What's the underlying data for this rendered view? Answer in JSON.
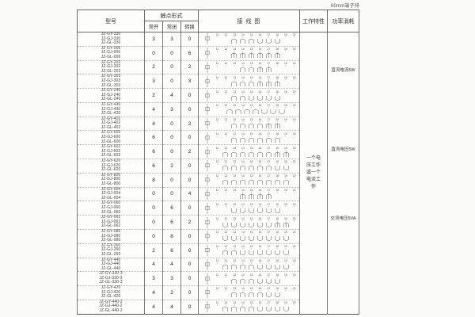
{
  "note": "60mm端子排",
  "headers": {
    "model": "型号",
    "contact_form": "触点形式",
    "normally_open": "常开",
    "normally_closed": "常闭",
    "changeover": "转换",
    "wiring_diagram": "接 线 图",
    "working_characteristics": "工作特性",
    "power_consumption": "功率消耗"
  },
  "working_characteristics_text": "一个电压工作或一个电流工作",
  "power_consumption_labels": [
    "直流电流5W",
    "直流电压5W",
    "交流电压5VA"
  ],
  "diagram": {
    "terminals": [
      "11",
      "12",
      "13",
      "14",
      "15",
      "16",
      "17",
      "18",
      "19",
      "20"
    ]
  },
  "rows": [
    {
      "models": [
        "JZ-GY-330",
        "JZ-GJ-330",
        "JZ-GL-330"
      ],
      "normally_open": "3",
      "normally_closed": "3",
      "changeover": "0"
    },
    {
      "models": [
        "JZ-GY-006",
        "JZ-GJ-006",
        "JZ-GL-006"
      ],
      "normally_open": "0",
      "normally_closed": "0",
      "changeover": "6"
    },
    {
      "models": [
        "JZ-GY-202",
        "JZ-GJ-202",
        "JZ-GL-202"
      ],
      "normally_open": "2",
      "normally_closed": "0",
      "changeover": "2"
    },
    {
      "models": [
        "JZ-GY-303",
        "JZ-GJ-303",
        "JZ-GL-303"
      ],
      "normally_open": "3",
      "normally_closed": "0",
      "changeover": "3"
    },
    {
      "models": [
        "JZ-GY-240",
        "JZ-GJ-240",
        "JZ-GL-240"
      ],
      "normally_open": "2",
      "normally_closed": "4",
      "changeover": "0"
    },
    {
      "models": [
        "JZ-GY-430",
        "JZ-GJ-430",
        "JZ-GL-430"
      ],
      "normally_open": "4",
      "normally_closed": "3",
      "changeover": "0"
    },
    {
      "models": [
        "JZ-GY-402",
        "JZ-GJ-402",
        "JZ-GL-402"
      ],
      "normally_open": "4",
      "normally_closed": "0",
      "changeover": "2"
    },
    {
      "models": [
        "JZ-GY-600",
        "JZ-GJ-600",
        "JZ-GL-600"
      ],
      "normally_open": "6",
      "normally_closed": "0",
      "changeover": "0"
    },
    {
      "models": [
        "JZ-GY-602",
        "JZ-GJ-602",
        "JZ-GL-602"
      ],
      "normally_open": "6",
      "normally_closed": "0",
      "changeover": "2"
    },
    {
      "models": [
        "JZ-GY-620",
        "JZ-GJ-620",
        "JZ-GL-620"
      ],
      "normally_open": "6",
      "normally_closed": "2",
      "changeover": "0"
    },
    {
      "models": [
        "JZ-GY-800",
        "JZ-GJ-800",
        "JZ-GL-800"
      ],
      "normally_open": "8",
      "normally_closed": "0",
      "changeover": "0"
    },
    {
      "models": [
        "JZ-GY-004",
        "JZ-GJ-004",
        "JZ-GL-004"
      ],
      "normally_open": "0",
      "normally_closed": "0",
      "changeover": "4"
    },
    {
      "models": [
        "JZ-GY-060",
        "JZ-GJ-060",
        "JZ-GL-060"
      ],
      "normally_open": "0",
      "normally_closed": "6",
      "changeover": "0"
    },
    {
      "models": [
        "JZ-GY-062",
        "JZ-GJ-062",
        "JZ-GL-062"
      ],
      "normally_open": "0",
      "normally_closed": "6",
      "changeover": "2"
    },
    {
      "models": [
        "JZ-GY-080",
        "JZ-GJ-080",
        "JZ-GL-080"
      ],
      "normally_open": "0",
      "normally_closed": "8",
      "changeover": "0"
    },
    {
      "models": [
        "JZ-GY-260",
        "JZ-GJ-260",
        "JZ-GL-260"
      ],
      "normally_open": "2",
      "normally_closed": "6",
      "changeover": "0"
    },
    {
      "models": [
        "JZ-GY-440",
        "JZ-GJ-440",
        "JZ-GL-440"
      ],
      "normally_open": "4",
      "normally_closed": "4",
      "changeover": "0"
    },
    {
      "models": [
        "JZ-GY-330-3",
        "JZ-GJ-330-3",
        "JZ-GL-330-3"
      ],
      "normally_open": "3",
      "normally_closed": "3",
      "changeover": "0"
    },
    {
      "models": [
        "JZ-GY-420",
        "JZ-GJ-420",
        "JZ-GL-420"
      ],
      "normally_open": "4",
      "normally_closed": "2",
      "changeover": "0"
    },
    {
      "models": [
        "JZ-GY-440-2",
        "JZ-GJ-440-2",
        "JZ-GL-440-2"
      ],
      "normally_open": "4",
      "normally_closed": "4",
      "changeover": "0"
    }
  ]
}
